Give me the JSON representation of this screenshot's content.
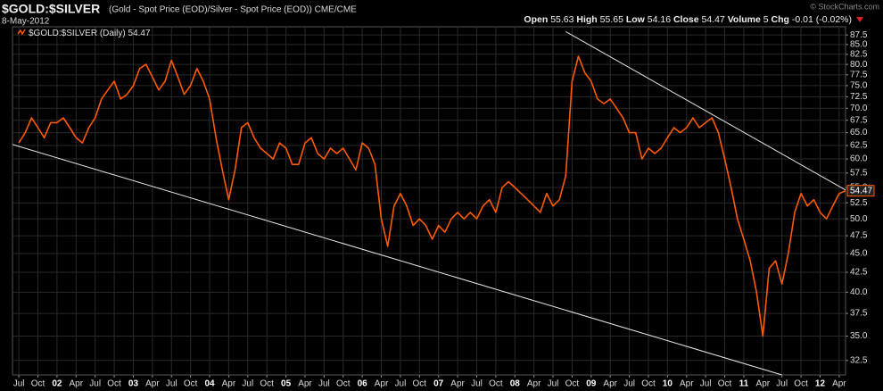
{
  "chart_data": {
    "type": "line",
    "title": "$GOLD:$SILVER",
    "subtitle": "(Gold - Spot Price (EOD)/Silver - Spot Price (EOD)) CME/CME",
    "date": "8-May-2012",
    "credit": "© StockCharts.com",
    "quote": [
      {
        "label": "Open",
        "value": 55.63
      },
      {
        "label": "High",
        "value": 55.65
      },
      {
        "label": "Low",
        "value": 54.16
      },
      {
        "label": "Close",
        "value": 54.47
      },
      {
        "label": "Volume",
        "value": 5
      },
      {
        "label": "Chg",
        "value": -0.01,
        "pct": "(-0.02%)"
      }
    ],
    "x": [
      "2001-07",
      "2001-08",
      "2001-09",
      "2001-10",
      "2001-11",
      "2001-12",
      "2002-01",
      "2002-02",
      "2002-03",
      "2002-04",
      "2002-05",
      "2002-06",
      "2002-07",
      "2002-08",
      "2002-09",
      "2002-10",
      "2002-11",
      "2002-12",
      "2003-01",
      "2003-02",
      "2003-03",
      "2003-04",
      "2003-05",
      "2003-06",
      "2003-07",
      "2003-08",
      "2003-09",
      "2003-10",
      "2003-11",
      "2003-12",
      "2004-01",
      "2004-02",
      "2004-03",
      "2004-04",
      "2004-05",
      "2004-06",
      "2004-07",
      "2004-08",
      "2004-09",
      "2004-10",
      "2004-11",
      "2004-12",
      "2005-01",
      "2005-02",
      "2005-03",
      "2005-04",
      "2005-05",
      "2005-06",
      "2005-07",
      "2005-08",
      "2005-09",
      "2005-10",
      "2005-11",
      "2005-12",
      "2006-01",
      "2006-02",
      "2006-03",
      "2006-04",
      "2006-05",
      "2006-06",
      "2006-07",
      "2006-08",
      "2006-09",
      "2006-10",
      "2006-11",
      "2006-12",
      "2007-01",
      "2007-02",
      "2007-03",
      "2007-04",
      "2007-05",
      "2007-06",
      "2007-07",
      "2007-08",
      "2007-09",
      "2007-10",
      "2007-11",
      "2007-12",
      "2008-01",
      "2008-02",
      "2008-03",
      "2008-04",
      "2008-05",
      "2008-06",
      "2008-07",
      "2008-08",
      "2008-09",
      "2008-10",
      "2008-11",
      "2008-12",
      "2009-01",
      "2009-02",
      "2009-03",
      "2009-04",
      "2009-05",
      "2009-06",
      "2009-07",
      "2009-08",
      "2009-09",
      "2009-10",
      "2009-11",
      "2009-12",
      "2010-01",
      "2010-02",
      "2010-03",
      "2010-04",
      "2010-05",
      "2010-06",
      "2010-07",
      "2010-08",
      "2010-09",
      "2010-10",
      "2010-11",
      "2010-12",
      "2011-01",
      "2011-02",
      "2011-03",
      "2011-04",
      "2011-05",
      "2011-06",
      "2011-07",
      "2011-08",
      "2011-09",
      "2011-10",
      "2011-11",
      "2011-12",
      "2012-01",
      "2012-02",
      "2012-03",
      "2012-04",
      "2012-05"
    ],
    "series": [
      {
        "name": "$GOLD:$SILVER (Daily)",
        "color": "#ff5a00",
        "values": [
          63,
          65,
          68,
          66,
          64,
          67,
          67,
          68,
          66,
          64,
          63,
          66,
          68,
          72,
          74,
          76,
          72,
          73,
          75,
          79,
          80,
          77,
          74,
          76,
          81,
          77,
          73,
          75,
          79,
          76,
          72,
          64,
          58,
          53,
          58,
          66,
          67,
          64,
          62,
          61,
          60,
          63,
          62,
          59,
          59,
          63,
          64,
          61,
          60,
          62,
          61,
          62,
          60,
          58,
          63,
          62,
          59,
          50,
          46,
          52,
          54,
          52,
          49,
          50,
          49,
          47,
          49,
          48,
          50,
          51,
          50,
          51,
          50,
          52,
          53,
          51,
          55,
          56,
          55,
          54,
          53,
          52,
          51,
          54,
          52,
          53,
          57,
          76,
          82,
          78,
          76,
          72,
          71,
          72,
          70,
          68,
          65,
          65,
          60,
          62,
          61,
          62,
          64,
          66,
          65,
          66,
          68,
          66,
          67,
          68,
          65,
          60,
          55,
          50,
          47,
          44,
          40,
          35,
          43,
          44,
          41,
          45,
          51,
          54,
          52,
          53,
          51,
          50,
          52,
          54,
          54.47
        ]
      }
    ],
    "trendlines": [
      {
        "x": [
          "2001-06",
          "2011-07"
        ],
        "y": [
          62.7,
          31.1
        ]
      },
      {
        "x": [
          "2008-09",
          "2012-05"
        ],
        "y": [
          88.4,
          54.6
        ]
      }
    ],
    "xlim": [
      "2001-06",
      "2012-05"
    ],
    "xticks": [
      {
        "value": "2001-07",
        "label": "Jul"
      },
      {
        "value": "2001-10",
        "label": "Oct"
      },
      {
        "value": "2002-01",
        "label": "02"
      },
      {
        "value": "2002-04",
        "label": "Apr"
      },
      {
        "value": "2002-07",
        "label": "Jul"
      },
      {
        "value": "2002-10",
        "label": "Oct"
      },
      {
        "value": "2003-01",
        "label": "03"
      },
      {
        "value": "2003-04",
        "label": "Apr"
      },
      {
        "value": "2003-07",
        "label": "Jul"
      },
      {
        "value": "2003-10",
        "label": "Oct"
      },
      {
        "value": "2004-01",
        "label": "04"
      },
      {
        "value": "2004-04",
        "label": "Apr"
      },
      {
        "value": "2004-07",
        "label": "Jul"
      },
      {
        "value": "2004-10",
        "label": "Oct"
      },
      {
        "value": "2005-01",
        "label": "05"
      },
      {
        "value": "2005-04",
        "label": "Apr"
      },
      {
        "value": "2005-07",
        "label": "Jul"
      },
      {
        "value": "2005-10",
        "label": "Oct"
      },
      {
        "value": "2006-01",
        "label": "06"
      },
      {
        "value": "2006-04",
        "label": "Apr"
      },
      {
        "value": "2006-07",
        "label": "Jul"
      },
      {
        "value": "2006-10",
        "label": "Oct"
      },
      {
        "value": "2007-01",
        "label": "07"
      },
      {
        "value": "2007-04",
        "label": "Apr"
      },
      {
        "value": "2007-07",
        "label": "Jul"
      },
      {
        "value": "2007-10",
        "label": "Oct"
      },
      {
        "value": "2008-01",
        "label": "08"
      },
      {
        "value": "2008-04",
        "label": "Apr"
      },
      {
        "value": "2008-07",
        "label": "Jul"
      },
      {
        "value": "2008-10",
        "label": "Oct"
      },
      {
        "value": "2009-01",
        "label": "09"
      },
      {
        "value": "2009-04",
        "label": "Apr"
      },
      {
        "value": "2009-07",
        "label": "Jul"
      },
      {
        "value": "2009-10",
        "label": "Oct"
      },
      {
        "value": "2010-01",
        "label": "10"
      },
      {
        "value": "2010-04",
        "label": "Apr"
      },
      {
        "value": "2010-07",
        "label": "Jul"
      },
      {
        "value": "2010-10",
        "label": "Oct"
      },
      {
        "value": "2011-01",
        "label": "11"
      },
      {
        "value": "2011-04",
        "label": "Apr"
      },
      {
        "value": "2011-07",
        "label": "Jul"
      },
      {
        "value": "2011-10",
        "label": "Oct"
      },
      {
        "value": "2012-01",
        "label": "12"
      },
      {
        "value": "2012-04",
        "label": "Apr"
      }
    ],
    "ylim": [
      31.1,
      89.7
    ],
    "log_y": true,
    "yticks": [
      32.5,
      {
        "value": 35,
        "label": "35.0"
      },
      37.5,
      {
        "value": 40,
        "label": "40.0"
      },
      42.5,
      {
        "value": 45,
        "label": "45.0"
      },
      47.5,
      {
        "value": 50,
        "label": "50.0"
      },
      52.5,
      {
        "value": 55,
        "label": "55.0"
      },
      57.5,
      {
        "value": 60,
        "label": "60.0"
      },
      62.5,
      {
        "value": 65,
        "label": "65.0"
      },
      67.5,
      {
        "value": 70,
        "label": "70.0"
      },
      72.5,
      {
        "value": 75,
        "label": "75.0"
      },
      77.5,
      {
        "value": 80,
        "label": "80.0"
      },
      82.5,
      {
        "value": 85,
        "label": "85.0"
      },
      87.5
    ],
    "grid": true
  }
}
